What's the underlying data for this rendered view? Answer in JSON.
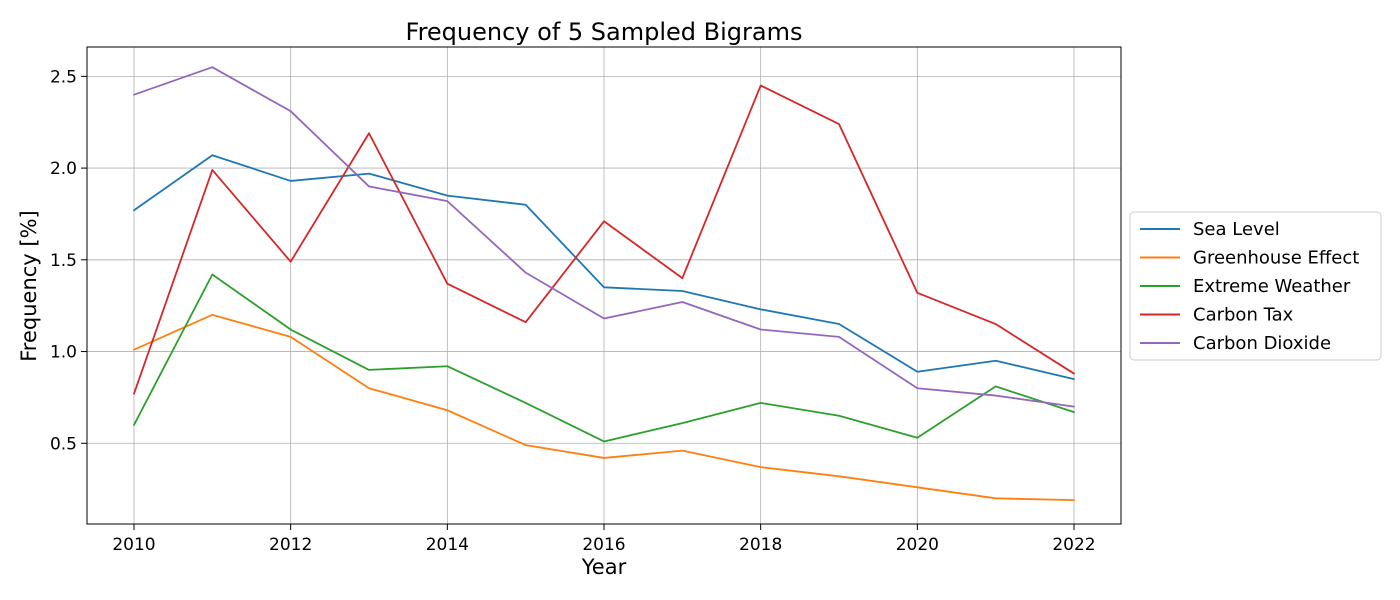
{
  "chart_data": {
    "type": "line",
    "title": "Frequency of 5 Sampled Bigrams",
    "xlabel": "Year",
    "ylabel": "Frequency [%]",
    "x": [
      2010,
      2011,
      2012,
      2013,
      2014,
      2015,
      2016,
      2017,
      2018,
      2019,
      2020,
      2021,
      2022
    ],
    "x_ticks": [
      "2010",
      "2012",
      "2014",
      "2016",
      "2018",
      "2020",
      "2022"
    ],
    "y_ticks": [
      "0.5",
      "1.0",
      "1.5",
      "2.0",
      "2.5"
    ],
    "xlim": [
      2009.4,
      2022.6
    ],
    "ylim": [
      0.06,
      2.66
    ],
    "grid": true,
    "legend_position": "center-right-outside",
    "series": [
      {
        "name": "Sea Level",
        "color": "#1f77b4",
        "values": [
          1.77,
          2.07,
          1.93,
          1.97,
          1.85,
          1.8,
          1.35,
          1.33,
          1.23,
          1.15,
          0.89,
          0.95,
          0.85
        ]
      },
      {
        "name": "Greenhouse Effect",
        "color": "#ff7f0e",
        "values": [
          1.01,
          1.2,
          1.08,
          0.8,
          0.68,
          0.49,
          0.42,
          0.46,
          0.37,
          0.32,
          0.26,
          0.2,
          0.19
        ]
      },
      {
        "name": "Extreme Weather",
        "color": "#2ca02c",
        "values": [
          0.6,
          1.42,
          1.12,
          0.9,
          0.92,
          0.72,
          0.51,
          0.61,
          0.72,
          0.65,
          0.53,
          0.81,
          0.67
        ]
      },
      {
        "name": "Carbon Tax",
        "color": "#d62728",
        "values": [
          0.77,
          1.99,
          1.49,
          2.19,
          1.37,
          1.16,
          1.71,
          1.4,
          2.45,
          2.24,
          1.32,
          1.15,
          0.88
        ]
      },
      {
        "name": "Carbon Dioxide",
        "color": "#9467bd",
        "values": [
          2.4,
          2.55,
          2.31,
          1.9,
          1.82,
          1.43,
          1.18,
          1.27,
          1.12,
          1.08,
          0.8,
          0.76,
          0.7
        ]
      }
    ]
  }
}
